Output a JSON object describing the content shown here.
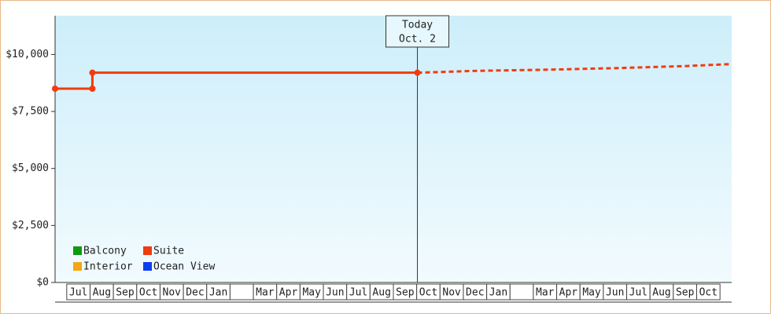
{
  "chart_data": {
    "type": "line",
    "categories": [
      "Jul",
      "Aug",
      "Sep",
      "Oct",
      "Nov",
      "Dec",
      "Jan",
      null,
      "Mar",
      "Apr",
      "May",
      "Jun",
      "Jul",
      "Aug",
      "Sep",
      "Oct",
      "Nov",
      "Dec",
      "Jan",
      null,
      "Mar",
      "Apr",
      "May",
      "Jun",
      "Jul",
      "Aug",
      "Sep",
      "Oct"
    ],
    "xlim": [
      -1,
      28
    ],
    "ylim": [
      0,
      11700
    ],
    "yticks": [
      {
        "value": 0,
        "label": "$0"
      },
      {
        "value": 2500,
        "label": "$2,500"
      },
      {
        "value": 5000,
        "label": "$5,000"
      },
      {
        "value": 7500,
        "label": "$7,500"
      },
      {
        "value": 10000,
        "label": "$10,000"
      }
    ],
    "series": [
      {
        "name": "Balcony",
        "color": "#119a11",
        "x": [],
        "values": []
      },
      {
        "name": "Suite",
        "color": "#f03c10",
        "x": [
          -1,
          0.6,
          0.6,
          14.53
        ],
        "values": [
          8500,
          8500,
          9200,
          9200
        ],
        "markers": true
      },
      {
        "name": "Interior",
        "color": "#f5a614",
        "x": [],
        "values": []
      },
      {
        "name": "Ocean View",
        "color": "#0c3ff0",
        "x": [],
        "values": []
      },
      {
        "color": "#f03c10",
        "dashed": true,
        "x": [
          14.53,
          17,
          20,
          23,
          26,
          28
        ],
        "values": [
          9200,
          9280,
          9330,
          9400,
          9490,
          9580
        ]
      }
    ],
    "annotation": {
      "x": 14.53,
      "lines": [
        "Today",
        "Oct. 2"
      ]
    }
  }
}
